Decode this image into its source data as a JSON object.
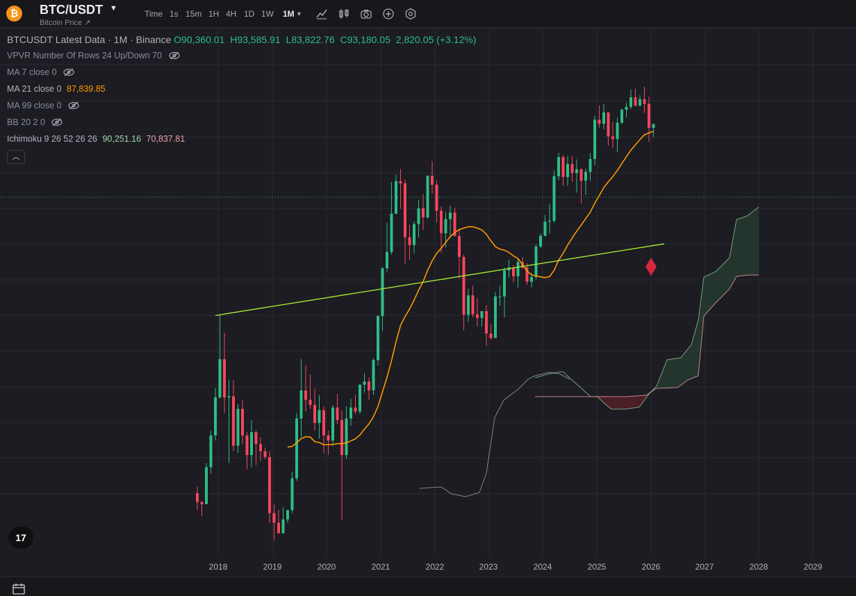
{
  "header": {
    "symbol": "BTC/USDT",
    "subtitle": "Bitcoin Price ↗",
    "coin_icon": "bitcoin-icon",
    "timeframes": [
      "Time",
      "1s",
      "15m",
      "1H",
      "4H",
      "1D",
      "1W",
      "1M"
    ],
    "active_timeframe": "1M",
    "tools": [
      "indicators-icon",
      "candle-type-icon",
      "camera-icon",
      "add-icon",
      "settings-icon"
    ]
  },
  "legend": {
    "title": "BTCUSDT Latest Data · 1M · Binance",
    "open": "O90,360.01",
    "high": "H93,585.91",
    "low": "L83,822.76",
    "close": "C93,180.05",
    "change": "2,820.05 (+3.12%)",
    "vpvr": "VPVR Number Of Rows 24 Up/Down 70",
    "ma7": "MA 7 close 0",
    "ma21": "MA 21 close 0",
    "ma21_value": "87,839.85",
    "ma99": "MA 99 close 0",
    "bb": "BB 20 2 0",
    "ichimoku": "Ichimoku 9 26 52 26 26",
    "ichimoku_value1": "90,251.16",
    "ichimoku_value2": "70,837.81",
    "collapse_icon": "chevron-up-icon"
  },
  "xaxis": {
    "labels": [
      "2018",
      "2019",
      "2020",
      "2021",
      "2022",
      "2023",
      "2024",
      "2025",
      "2026",
      "2027",
      "2028",
      "2029"
    ]
  },
  "colors": {
    "up": "#2ebd85",
    "down": "#f6465d",
    "ma21": "#ff9800",
    "trendline": "#a3e635",
    "cloud_up": "#2b4a36",
    "cloud_down": "#5a2028",
    "marker": "#d7263d"
  },
  "chart_data": {
    "type": "candlestick",
    "note_axis": "x: months from Aug 2017, y: log price",
    "candles": [
      [
        4700,
        4950,
        4100,
        4380
      ],
      [
        4380,
        4400,
        3900,
        4300
      ],
      [
        4300,
        6000,
        4300,
        5800
      ],
      [
        5800,
        7800,
        5500,
        7500
      ],
      [
        7500,
        11000,
        7200,
        10200
      ],
      [
        10200,
        19800,
        10100,
        13900
      ],
      [
        13900,
        17200,
        9000,
        10200
      ],
      [
        10200,
        11800,
        6000,
        10300
      ],
      [
        10300,
        11700,
        6600,
        6900
      ],
      [
        6900,
        9700,
        6500,
        9300
      ],
      [
        9300,
        10000,
        7000,
        7500
      ],
      [
        7500,
        7700,
        5700,
        6400
      ],
      [
        6400,
        8500,
        5800,
        7700
      ],
      [
        7700,
        7800,
        5900,
        7000
      ],
      [
        7000,
        7400,
        6100,
        6600
      ],
      [
        6600,
        6800,
        6200,
        6300
      ],
      [
        6300,
        6600,
        3700,
        4000
      ],
      [
        4000,
        4300,
        3200,
        3700
      ],
      [
        3700,
        4100,
        3400,
        3400
      ],
      [
        3400,
        4200,
        3400,
        3800
      ],
      [
        3800,
        4100,
        3700,
        4100
      ],
      [
        4100,
        5600,
        4000,
        5300
      ],
      [
        5300,
        9000,
        5200,
        8600
      ],
      [
        8600,
        13900,
        7400,
        10800
      ],
      [
        10800,
        13200,
        9100,
        10000
      ],
      [
        10000,
        12300,
        9300,
        9600
      ],
      [
        9600,
        10950,
        7800,
        8300
      ],
      [
        8300,
        10400,
        7300,
        9200
      ],
      [
        9200,
        9500,
        6500,
        7500
      ],
      [
        7500,
        7800,
        6400,
        7200
      ],
      [
        7200,
        9600,
        6900,
        9400
      ],
      [
        9400,
        10500,
        8200,
        8500
      ],
      [
        8500,
        9200,
        3800,
        6400
      ],
      [
        6400,
        9500,
        6200,
        8600
      ],
      [
        8600,
        10100,
        8100,
        9400
      ],
      [
        9400,
        10400,
        8900,
        9100
      ],
      [
        9100,
        11400,
        8900,
        11300
      ],
      [
        11300,
        12400,
        10600,
        11600
      ],
      [
        11600,
        12000,
        10000,
        10800
      ],
      [
        10800,
        14000,
        10400,
        13800
      ],
      [
        13800,
        19900,
        13200,
        19700
      ],
      [
        19700,
        29300,
        17500,
        29000
      ],
      [
        29000,
        41900,
        28100,
        33100
      ],
      [
        33100,
        58300,
        32400,
        45100
      ],
      [
        45100,
        61800,
        45000,
        58700
      ],
      [
        58700,
        64800,
        47000,
        57700
      ],
      [
        57700,
        59500,
        30000,
        37300
      ],
      [
        37300,
        41300,
        31000,
        35000
      ],
      [
        35000,
        42400,
        32700,
        41500
      ],
      [
        41500,
        50500,
        37300,
        47100
      ],
      [
        47100,
        52900,
        39600,
        43800
      ],
      [
        43800,
        61500,
        43300,
        61300
      ],
      [
        61300,
        69000,
        53000,
        57000
      ],
      [
        57000,
        59000,
        42000,
        46200
      ],
      [
        46200,
        47900,
        32900,
        38500
      ],
      [
        38500,
        45800,
        34300,
        43200
      ],
      [
        43200,
        48200,
        37100,
        45500
      ],
      [
        45500,
        47400,
        37600,
        37600
      ],
      [
        37600,
        40000,
        26700,
        31800
      ],
      [
        31800,
        32400,
        17600,
        19900
      ],
      [
        19900,
        24600,
        18800,
        23300
      ],
      [
        23300,
        25200,
        19500,
        20000
      ],
      [
        20000,
        22800,
        18100,
        19400
      ],
      [
        19400,
        20500,
        18100,
        20500
      ],
      [
        20500,
        21500,
        15500,
        17100
      ],
      [
        17100,
        18400,
        16300,
        16500
      ],
      [
        16500,
        23900,
        16500,
        23100
      ],
      [
        23100,
        25200,
        21400,
        23100
      ],
      [
        23100,
        29200,
        19500,
        28500
      ],
      [
        28500,
        31000,
        26900,
        29200
      ],
      [
        29200,
        29800,
        25800,
        27200
      ],
      [
        27200,
        31400,
        24800,
        30500
      ],
      [
        30500,
        31800,
        28800,
        29200
      ],
      [
        29200,
        30200,
        25300,
        26000
      ],
      [
        26000,
        28000,
        24900,
        27000
      ],
      [
        27000,
        35200,
        26500,
        34600
      ],
      [
        34600,
        38400,
        34100,
        37700
      ],
      [
        37700,
        44700,
        37600,
        42300
      ],
      [
        42300,
        48900,
        38500,
        42600
      ],
      [
        42600,
        64000,
        41900,
        61100
      ],
      [
        61100,
        73800,
        59000,
        71300
      ],
      [
        71300,
        72700,
        56500,
        60700
      ],
      [
        60700,
        71900,
        56600,
        67500
      ],
      [
        67500,
        72000,
        58400,
        62700
      ],
      [
        62700,
        70000,
        53500,
        64600
      ],
      [
        64600,
        65100,
        49000,
        58900
      ],
      [
        58900,
        65000,
        52500,
        63300
      ],
      [
        63300,
        73600,
        58900,
        70200
      ],
      [
        70200,
        99600,
        66800,
        96400
      ],
      [
        96400,
        108300,
        90500,
        93400
      ],
      [
        93400,
        109600,
        89200,
        102400
      ],
      [
        102400,
        102500,
        78200,
        84300
      ],
      [
        84300,
        95000,
        76600,
        82500
      ],
      [
        82500,
        97900,
        74500,
        94200
      ],
      [
        94200,
        105800,
        93300,
        104600
      ],
      [
        104600,
        110500,
        98200,
        107100
      ],
      [
        107100,
        123200,
        105100,
        115700
      ],
      [
        115700,
        124500,
        107300,
        108200
      ],
      [
        108200,
        117900,
        107300,
        114000
      ],
      [
        114000,
        126200,
        102000,
        109600
      ],
      [
        109600,
        116400,
        80600,
        90360
      ],
      [
        90360,
        93586,
        83823,
        93180
      ]
    ]
  }
}
